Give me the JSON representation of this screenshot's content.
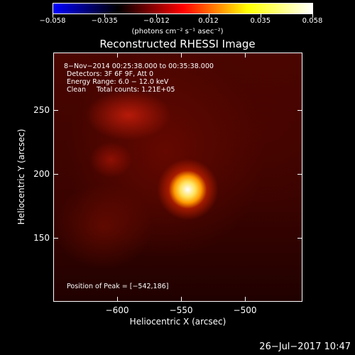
{
  "colorbar": {
    "min": -0.058,
    "max": 0.058,
    "tick_labels": [
      "−0.058",
      "−0.035",
      "−0.012",
      "0.012",
      "0.035",
      "0.058"
    ],
    "units": "(photons cm⁻² s⁻¹ asec⁻²)",
    "colormap": [
      "#0000ff",
      "#000000",
      "#ff0000",
      "#ffff00",
      "#ffffff"
    ]
  },
  "chart_data": {
    "type": "heatmap",
    "title": "Reconstructed RHESSI Image",
    "xlabel": "Heliocentric X (arcsec)",
    "ylabel": "Heliocentric Y (arcsec)",
    "xlim": [
      -650,
      -455
    ],
    "ylim": [
      100,
      295
    ],
    "x_ticks": [
      -600,
      -550,
      -500
    ],
    "x_tick_labels": [
      "−600",
      "−550",
      "−500"
    ],
    "y_ticks": [
      150,
      200,
      250
    ],
    "y_tick_labels": [
      "150",
      "200",
      "250"
    ],
    "peak": {
      "x": -542,
      "y": 186
    },
    "info_lines": [
      "8−Nov−2014 00:25:38.000 to 00:35:38.000",
      "Detectors: 3F 6F 9F, Att 0",
      "Energy Range: 6.0 − 12.0 keV",
      "Clean     Total counts: 1.21E+05"
    ],
    "peak_text": "Position of Peak = [−542,186]"
  },
  "timestamp": "26−Jul−2017 10:47"
}
